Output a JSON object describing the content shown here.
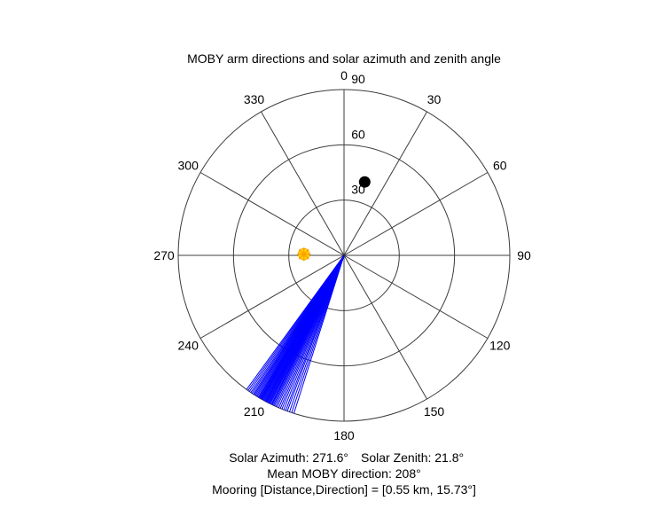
{
  "title": "MOBY arm directions and solar azimuth and zenith angle",
  "footer": {
    "solar_azimuth": "Solar Azimuth: 271.6°",
    "solar_zenith": "Solar Zenith: 21.8°",
    "mean_direction": "Mean MOBY direction: 208°",
    "mooring": "Mooring [Distance,Direction] = [0.55 km, 15.73°]"
  },
  "chart_data": {
    "type": "polar",
    "title": "MOBY arm directions and solar azimuth and zenith angle",
    "angle_zero_position": "top",
    "angle_direction": "clockwise",
    "angle_step_deg": 30,
    "angle_labels": [
      "0",
      "30",
      "60",
      "90",
      "120",
      "150",
      "180",
      "210",
      "240",
      "270",
      "300",
      "330"
    ],
    "radial_ticks": [
      30,
      60,
      90
    ],
    "radial_tick_labels": [
      "30",
      "60",
      "90"
    ],
    "max_radius": 90,
    "arm_directions_deg": [
      197.6,
      198.4,
      199.2,
      200.0,
      200.6,
      201.3,
      202.0,
      202.6,
      203.2,
      203.8,
      204.3,
      204.8,
      205.2,
      205.6,
      206.0,
      206.4,
      206.7,
      207.0,
      207.3,
      207.6,
      207.9,
      208.2,
      208.5,
      208.8,
      209.1,
      209.4,
      209.7,
      210.0,
      210.3,
      210.6,
      210.9,
      211.2,
      211.6,
      212.0,
      212.4,
      212.8,
      213.2,
      213.7,
      214.2,
      214.8,
      215.4,
      216.0,
      205.9,
      208.0,
      209.9
    ],
    "mean_moby_direction_deg": 208,
    "solar": {
      "azimuth_deg": 271.6,
      "zenith_deg": 21.8
    },
    "mooring": {
      "distance_km": 0.55,
      "direction_deg": 15.73,
      "plot_radius_units": 41.4
    },
    "colors": {
      "arm_lines": "#0000ff",
      "grid": "#3c3c3c",
      "sun_fill": "#ffe100",
      "sun_spokes": "#ffa000",
      "mooring_dot": "#000000",
      "text": "#000000"
    }
  }
}
